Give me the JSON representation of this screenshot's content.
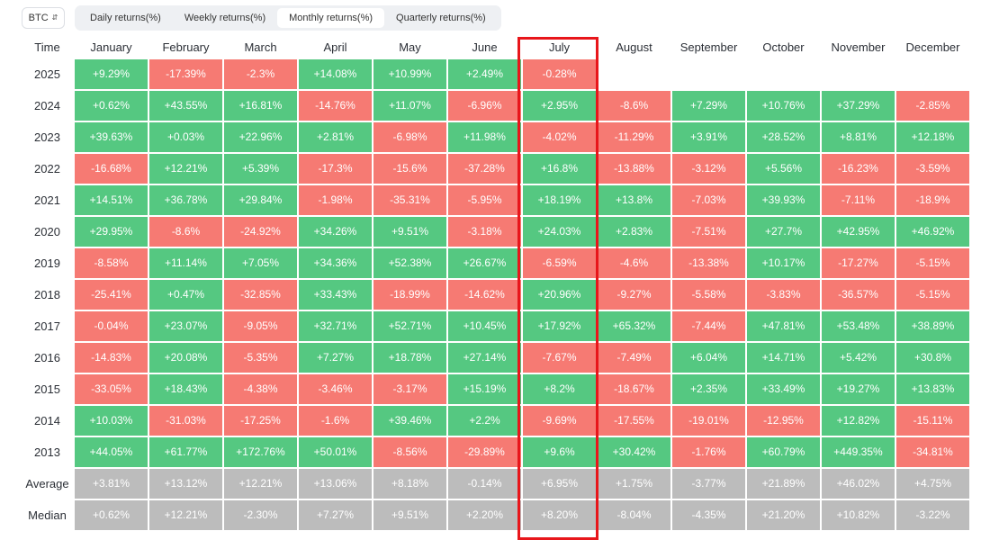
{
  "asset_select": {
    "value": "BTC"
  },
  "tabs": [
    {
      "label": "Daily returns(%)",
      "active": false
    },
    {
      "label": "Weekly returns(%)",
      "active": false
    },
    {
      "label": "Monthly returns(%)",
      "active": true
    },
    {
      "label": "Quarterly returns(%)",
      "active": false
    }
  ],
  "colors": {
    "positive": "#55c881",
    "negative": "#f67a73",
    "summary": "#bcbcbc",
    "highlight": "#e8161b"
  },
  "table": {
    "time_header": "Time",
    "months": [
      "January",
      "February",
      "March",
      "April",
      "May",
      "June",
      "July",
      "August",
      "September",
      "October",
      "November",
      "December"
    ],
    "highlighted_month": "July",
    "rows": [
      {
        "label": "2025",
        "values": [
          "+9.29%",
          "-17.39%",
          "-2.3%",
          "+14.08%",
          "+10.99%",
          "+2.49%",
          "-0.28%",
          "",
          "",
          "",
          "",
          ""
        ]
      },
      {
        "label": "2024",
        "values": [
          "+0.62%",
          "+43.55%",
          "+16.81%",
          "-14.76%",
          "+11.07%",
          "-6.96%",
          "+2.95%",
          "-8.6%",
          "+7.29%",
          "+10.76%",
          "+37.29%",
          "-2.85%"
        ]
      },
      {
        "label": "2023",
        "values": [
          "+39.63%",
          "+0.03%",
          "+22.96%",
          "+2.81%",
          "-6.98%",
          "+11.98%",
          "-4.02%",
          "-11.29%",
          "+3.91%",
          "+28.52%",
          "+8.81%",
          "+12.18%"
        ]
      },
      {
        "label": "2022",
        "values": [
          "-16.68%",
          "+12.21%",
          "+5.39%",
          "-17.3%",
          "-15.6%",
          "-37.28%",
          "+16.8%",
          "-13.88%",
          "-3.12%",
          "+5.56%",
          "-16.23%",
          "-3.59%"
        ]
      },
      {
        "label": "2021",
        "values": [
          "+14.51%",
          "+36.78%",
          "+29.84%",
          "-1.98%",
          "-35.31%",
          "-5.95%",
          "+18.19%",
          "+13.8%",
          "-7.03%",
          "+39.93%",
          "-7.11%",
          "-18.9%"
        ]
      },
      {
        "label": "2020",
        "values": [
          "+29.95%",
          "-8.6%",
          "-24.92%",
          "+34.26%",
          "+9.51%",
          "-3.18%",
          "+24.03%",
          "+2.83%",
          "-7.51%",
          "+27.7%",
          "+42.95%",
          "+46.92%"
        ]
      },
      {
        "label": "2019",
        "values": [
          "-8.58%",
          "+11.14%",
          "+7.05%",
          "+34.36%",
          "+52.38%",
          "+26.67%",
          "-6.59%",
          "-4.6%",
          "-13.38%",
          "+10.17%",
          "-17.27%",
          "-5.15%"
        ]
      },
      {
        "label": "2018",
        "values": [
          "-25.41%",
          "+0.47%",
          "-32.85%",
          "+33.43%",
          "-18.99%",
          "-14.62%",
          "+20.96%",
          "-9.27%",
          "-5.58%",
          "-3.83%",
          "-36.57%",
          "-5.15%"
        ]
      },
      {
        "label": "2017",
        "values": [
          "-0.04%",
          "+23.07%",
          "-9.05%",
          "+32.71%",
          "+52.71%",
          "+10.45%",
          "+17.92%",
          "+65.32%",
          "-7.44%",
          "+47.81%",
          "+53.48%",
          "+38.89%"
        ]
      },
      {
        "label": "2016",
        "values": [
          "-14.83%",
          "+20.08%",
          "-5.35%",
          "+7.27%",
          "+18.78%",
          "+27.14%",
          "-7.67%",
          "-7.49%",
          "+6.04%",
          "+14.71%",
          "+5.42%",
          "+30.8%"
        ]
      },
      {
        "label": "2015",
        "values": [
          "-33.05%",
          "+18.43%",
          "-4.38%",
          "-3.46%",
          "-3.17%",
          "+15.19%",
          "+8.2%",
          "-18.67%",
          "+2.35%",
          "+33.49%",
          "+19.27%",
          "+13.83%"
        ]
      },
      {
        "label": "2014",
        "values": [
          "+10.03%",
          "-31.03%",
          "-17.25%",
          "-1.6%",
          "+39.46%",
          "+2.2%",
          "-9.69%",
          "-17.55%",
          "-19.01%",
          "-12.95%",
          "+12.82%",
          "-15.11%"
        ]
      },
      {
        "label": "2013",
        "values": [
          "+44.05%",
          "+61.77%",
          "+172.76%",
          "+50.01%",
          "-8.56%",
          "-29.89%",
          "+9.6%",
          "+30.42%",
          "-1.76%",
          "+60.79%",
          "+449.35%",
          "-34.81%"
        ]
      }
    ],
    "summary_rows": [
      {
        "label": "Average",
        "values": [
          "+3.81%",
          "+13.12%",
          "+12.21%",
          "+13.06%",
          "+8.18%",
          "-0.14%",
          "+6.95%",
          "+1.75%",
          "-3.77%",
          "+21.89%",
          "+46.02%",
          "+4.75%"
        ]
      },
      {
        "label": "Median",
        "values": [
          "+0.62%",
          "+12.21%",
          "-2.30%",
          "+7.27%",
          "+9.51%",
          "+2.20%",
          "+8.20%",
          "-8.04%",
          "-4.35%",
          "+21.20%",
          "+10.82%",
          "-3.22%"
        ]
      }
    ]
  }
}
